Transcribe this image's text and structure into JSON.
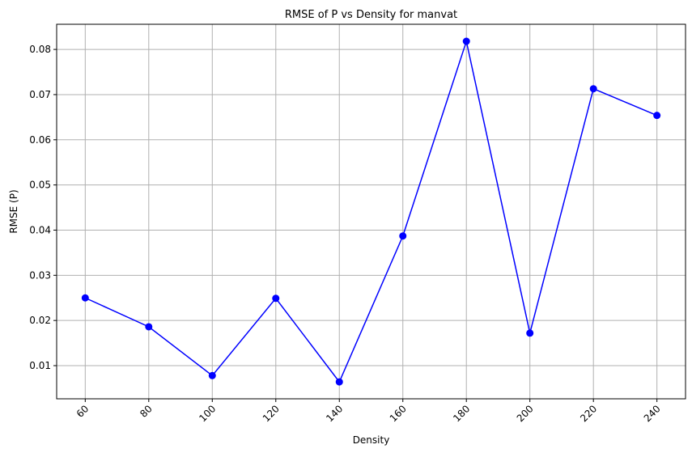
{
  "chart_data": {
    "type": "line",
    "title": "RMSE of P vs Density for manvat",
    "xlabel": "Density",
    "ylabel": "RMSE (P)",
    "x": [
      60,
      80,
      100,
      120,
      140,
      160,
      180,
      200,
      220,
      240
    ],
    "series": [
      {
        "values": [
          0.025,
          0.0186,
          0.0078,
          0.0249,
          0.0064,
          0.0387,
          0.0818,
          0.0172,
          0.0713,
          0.0654
        ],
        "color": "#0000ff",
        "marker": "circle"
      }
    ],
    "xticks": [
      "60",
      "80",
      "100",
      "120",
      "140",
      "160",
      "180",
      "200",
      "220",
      "240"
    ],
    "xtick_rotation": -45,
    "yticks": [
      0.01,
      0.02,
      0.03,
      0.04,
      0.05,
      0.06,
      0.07,
      0.08
    ],
    "ytick_labels": [
      "0.01",
      "0.02",
      "0.03",
      "0.04",
      "0.05",
      "0.06",
      "0.07",
      "0.08"
    ],
    "xlim": [
      51,
      249
    ],
    "ylim": [
      0.00266,
      0.08557
    ],
    "grid": true,
    "grid_color": "#b0b0b0"
  }
}
